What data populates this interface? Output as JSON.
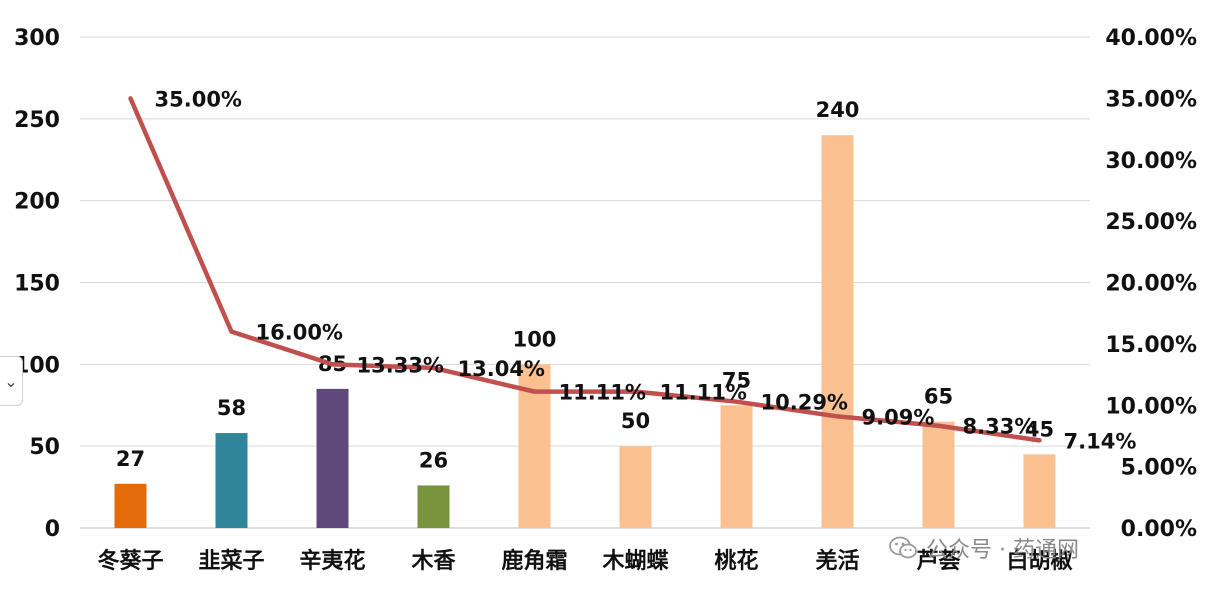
{
  "chart_data": {
    "type": "bar+line",
    "categories": [
      "冬葵子",
      "韭菜子",
      "辛夷花",
      "木香",
      "鹿角霜",
      "木蝴蝶",
      "桃花",
      "羌活",
      "芦荟",
      "白胡椒"
    ],
    "series": [
      {
        "type": "bar",
        "axis": "left",
        "values": [
          27,
          58,
          85,
          26,
          100,
          50,
          75,
          240,
          65,
          45
        ],
        "labels": [
          "27",
          "58",
          "85",
          "26",
          "100",
          "50",
          "75",
          "240",
          "65",
          "45"
        ],
        "colors": [
          "#e36c0a",
          "#31859b",
          "#5f497a",
          "#77933c",
          "#fac090",
          "#fac090",
          "#fac090",
          "#fac090",
          "#fac090",
          "#fac090"
        ]
      },
      {
        "type": "line",
        "axis": "right",
        "values": [
          0.35,
          0.16,
          0.1333,
          0.1304,
          0.1111,
          0.1111,
          0.1029,
          0.0909,
          0.0833,
          0.0714
        ],
        "labels": [
          "35.00%",
          "16.00%",
          "13.33%",
          "13.04%",
          "11.11%",
          "11.11%",
          "10.29%",
          "9.09%",
          "8.33%",
          "7.14%"
        ],
        "color": "#c0504d"
      }
    ],
    "y_left": {
      "min": 0,
      "max": 300,
      "ticks": [
        "0",
        "50",
        "100",
        "150",
        "200",
        "250",
        "300"
      ]
    },
    "y_right": {
      "min": 0,
      "max": 0.4,
      "ticks": [
        "0.00%",
        "5.00%",
        "10.00%",
        "15.00%",
        "20.00%",
        "25.00%",
        "30.00%",
        "35.00%",
        "40.00%"
      ]
    },
    "grid": true,
    "legend": "none"
  },
  "watermark": {
    "text": "公众号 · 药通网",
    "icon": "wechat-icon"
  },
  "side_toggle": {
    "glyph": "⌄"
  }
}
